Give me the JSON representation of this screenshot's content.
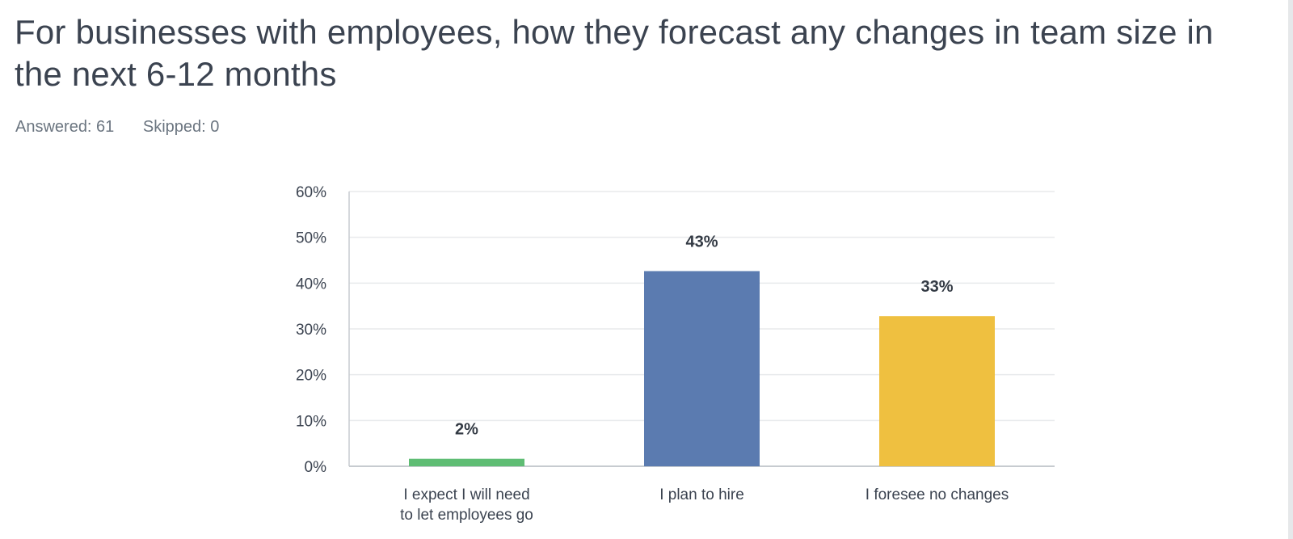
{
  "title": "For businesses with employees, how they forecast any changes in team size in the next 6-12 months",
  "stats": {
    "answered": "Answered: 61",
    "skipped": "Skipped: 0"
  },
  "colors": {
    "green": "#5fbd74",
    "blue": "#5b7bb0",
    "yellow": "#efc040",
    "grid": "#e8eaec",
    "axis": "#c7cbd0"
  },
  "chart_data": {
    "type": "bar",
    "categories": [
      [
        "I expect I will need",
        "to let employees go"
      ],
      [
        "I plan to hire"
      ],
      [
        "I foresee no changes"
      ]
    ],
    "values": [
      1.64,
      42.62,
      32.79
    ],
    "data_labels": [
      "2%",
      "43%",
      "33%"
    ],
    "bar_colors": [
      "#5fbd74",
      "#5b7bb0",
      "#efc040"
    ],
    "yticks": [
      "0%",
      "10%",
      "20%",
      "30%",
      "40%",
      "50%",
      "60%"
    ],
    "ylim": [
      0,
      60
    ],
    "grid": true
  }
}
